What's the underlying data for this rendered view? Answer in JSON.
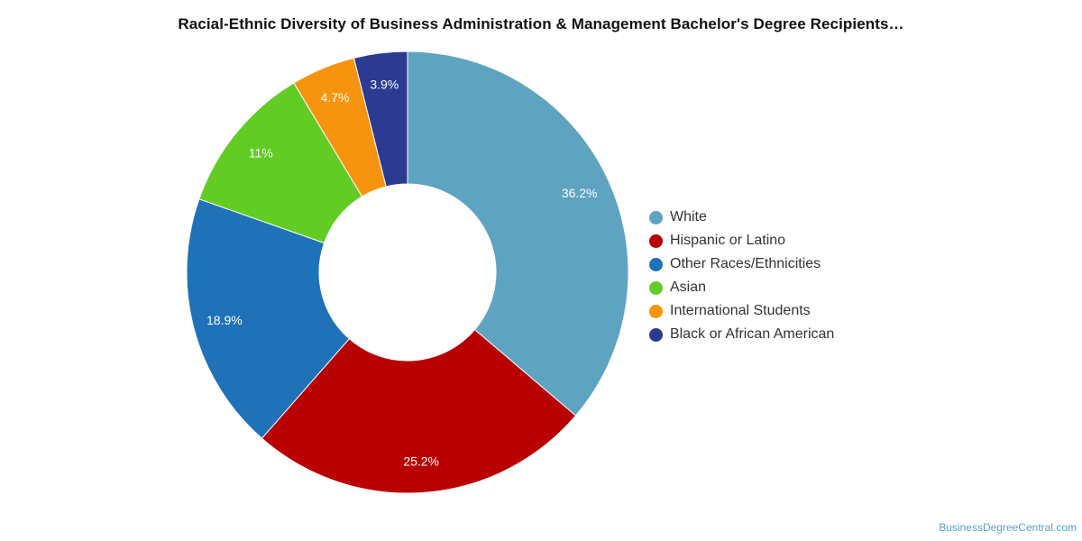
{
  "title": "Racial-Ethnic Diversity of Business Administration & Management Bachelor's Degree Recipients…",
  "source_credit": "BusinessDegreeCentral.com",
  "chart_data": {
    "type": "pie",
    "variant": "donut",
    "title": "Racial-Ethnic Diversity of Business Administration & Management Bachelor's Degree Recipients…",
    "categories": [
      "White",
      "Hispanic or Latino",
      "Other Races/Ethnicities",
      "Asian",
      "International Students",
      "Black or African American"
    ],
    "values": [
      36.2,
      25.2,
      18.9,
      11,
      4.7,
      3.9
    ],
    "value_labels": [
      "36.2%",
      "25.2%",
      "18.9%",
      "11%",
      "4.7%",
      "3.9%"
    ],
    "colors": [
      "#5ea3c0",
      "#b80000",
      "#1f72b8",
      "#62cc25",
      "#f7940f",
      "#2d3a91"
    ],
    "legend_position": "right",
    "unit": "%"
  }
}
